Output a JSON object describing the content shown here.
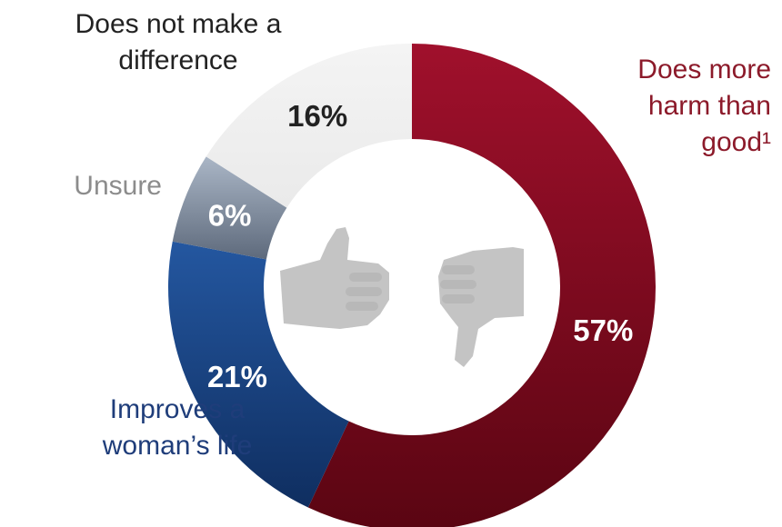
{
  "chart_data": {
    "type": "pie",
    "donut": true,
    "slices": [
      {
        "label_lines": [
          "Does more",
          "harm than",
          "good¹"
        ],
        "value": 57,
        "display": "57%",
        "color": "#8c0a22",
        "label_color": "#8c1a2a",
        "value_label_color": "#ffffff"
      },
      {
        "label_lines": [
          "Improves a",
          "woman’s life"
        ],
        "value": 21,
        "display": "21%",
        "color": "#1f4a8a",
        "label_color": "#1f3d7a",
        "value_label_color": "#ffffff"
      },
      {
        "label_lines": [
          "Unsure"
        ],
        "value": 6,
        "display": "6%",
        "color": "#7f8da0",
        "label_color": "#8c8c8c",
        "value_label_color": "#ffffff"
      },
      {
        "label_lines": [
          "Does not make a",
          "difference"
        ],
        "value": 16,
        "display": "16%",
        "color": "#f0f0f0",
        "label_color": "#222222",
        "value_label_color": "#222222"
      }
    ],
    "center_icons": [
      "thumbs-up-icon",
      "thumbs-down-icon"
    ]
  }
}
